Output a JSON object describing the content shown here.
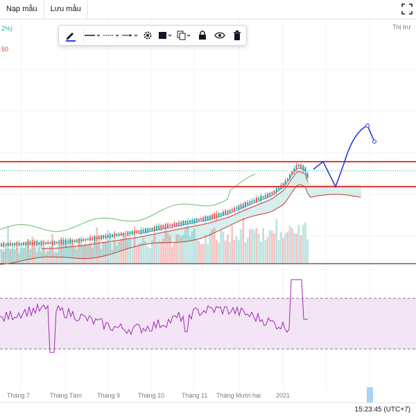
{
  "toolbar_top": {
    "load_template": "Nạp mẫu",
    "save_template": "Lưu mẫu"
  },
  "legend": {
    "pct_fragment": "2%)",
    "ma_fragment": "50",
    "market_status": "Thị trư"
  },
  "drawing_toolbar": {
    "icons": [
      "pencil-icon",
      "line-style-icon",
      "line-width-icon",
      "line-end-icon",
      "settings-icon",
      "template-icon",
      "clone-icon",
      "lock-icon",
      "visibility-icon",
      "trash-icon"
    ]
  },
  "x_axis": {
    "labels": [
      "Tháng 7",
      "Tháng Tám",
      "Tháng 9",
      "Tháng 10",
      "Tháng 11",
      "Tháng Mười hai",
      "2021"
    ]
  },
  "clock": {
    "time": "15:23:45 (UTC+7)"
  },
  "colors": {
    "up": "#26a69a",
    "down": "#ef5350",
    "resistance": "#e53935",
    "drawing": "#1e40d8",
    "rsi": "#9c27b0",
    "rsi_band": "#f3e5f5"
  }
}
